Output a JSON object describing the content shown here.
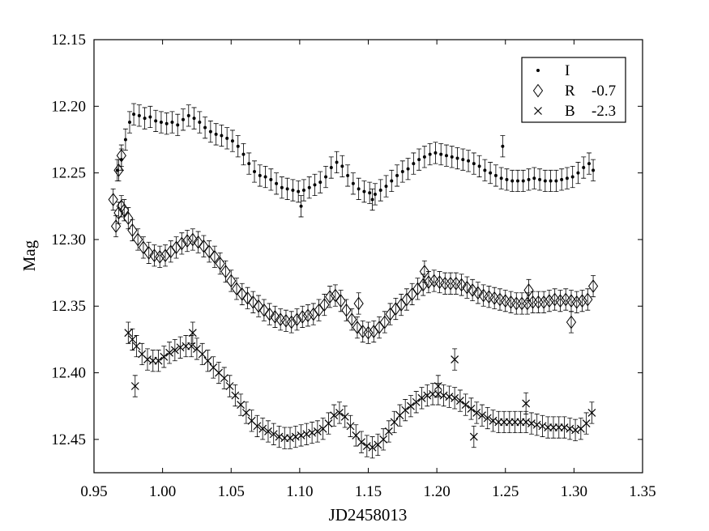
{
  "chart_data": {
    "type": "scatter",
    "title": "",
    "xlabel": "JD2458013",
    "ylabel": "Mag",
    "xlim": [
      0.95,
      1.35
    ],
    "ylim": [
      12.15,
      12.475
    ],
    "y_inverted": true,
    "grid": false,
    "legend_position": "top-right",
    "xticks": [
      "0.95",
      "1.00",
      "1.05",
      "1.10",
      "1.15",
      "1.20",
      "1.25",
      "1.30",
      "1.35"
    ],
    "yticks": [
      "12.15",
      "12.20",
      "12.25",
      "12.30",
      "12.35",
      "12.40",
      "12.45"
    ],
    "error_bars": true,
    "typical_error": 0.008,
    "series": [
      {
        "name": "I",
        "offset_label": "",
        "marker": "dot",
        "points": [
          [
            0.967,
            12.248
          ],
          [
            0.97,
            12.24
          ],
          [
            0.973,
            12.225
          ],
          [
            0.976,
            12.212
          ],
          [
            0.979,
            12.206
          ],
          [
            0.983,
            12.207
          ],
          [
            0.987,
            12.209
          ],
          [
            0.991,
            12.208
          ],
          [
            0.995,
            12.211
          ],
          [
            0.999,
            12.212
          ],
          [
            1.003,
            12.213
          ],
          [
            1.007,
            12.212
          ],
          [
            1.011,
            12.214
          ],
          [
            1.015,
            12.21
          ],
          [
            1.019,
            12.207
          ],
          [
            1.023,
            12.209
          ],
          [
            1.027,
            12.212
          ],
          [
            1.031,
            12.216
          ],
          [
            1.035,
            12.219
          ],
          [
            1.039,
            12.221
          ],
          [
            1.043,
            12.222
          ],
          [
            1.047,
            12.224
          ],
          [
            1.051,
            12.226
          ],
          [
            1.055,
            12.23
          ],
          [
            1.059,
            12.236
          ],
          [
            1.063,
            12.243
          ],
          [
            1.067,
            12.249
          ],
          [
            1.071,
            12.252
          ],
          [
            1.075,
            12.253
          ],
          [
            1.079,
            12.255
          ],
          [
            1.083,
            12.258
          ],
          [
            1.087,
            12.261
          ],
          [
            1.091,
            12.262
          ],
          [
            1.095,
            12.263
          ],
          [
            1.099,
            12.264
          ],
          [
            1.103,
            12.263
          ],
          [
            1.107,
            12.261
          ],
          [
            1.111,
            12.259
          ],
          [
            1.115,
            12.257
          ],
          [
            1.119,
            12.253
          ],
          [
            1.123,
            12.246
          ],
          [
            1.127,
            12.242
          ],
          [
            1.131,
            12.245
          ],
          [
            1.135,
            12.252
          ],
          [
            1.139,
            12.258
          ],
          [
            1.143,
            12.262
          ],
          [
            1.147,
            12.264
          ],
          [
            1.151,
            12.265
          ],
          [
            1.155,
            12.266
          ],
          [
            1.159,
            12.263
          ],
          [
            1.163,
            12.26
          ],
          [
            1.167,
            12.256
          ],
          [
            1.171,
            12.252
          ],
          [
            1.175,
            12.249
          ],
          [
            1.179,
            12.247
          ],
          [
            1.183,
            12.243
          ],
          [
            1.187,
            12.24
          ],
          [
            1.191,
            12.238
          ],
          [
            1.195,
            12.236
          ],
          [
            1.199,
            12.235
          ],
          [
            1.203,
            12.236
          ],
          [
            1.207,
            12.237
          ],
          [
            1.211,
            12.238
          ],
          [
            1.215,
            12.239
          ],
          [
            1.219,
            12.24
          ],
          [
            1.223,
            12.241
          ],
          [
            1.227,
            12.243
          ],
          [
            1.231,
            12.245
          ],
          [
            1.235,
            12.248
          ],
          [
            1.239,
            12.25
          ],
          [
            1.243,
            12.252
          ],
          [
            1.247,
            12.254
          ],
          [
            1.251,
            12.255
          ],
          [
            1.255,
            12.256
          ],
          [
            1.259,
            12.256
          ],
          [
            1.263,
            12.256
          ],
          [
            1.267,
            12.255
          ],
          [
            1.271,
            12.254
          ],
          [
            1.275,
            12.255
          ],
          [
            1.279,
            12.256
          ],
          [
            1.283,
            12.256
          ],
          [
            1.287,
            12.256
          ],
          [
            1.291,
            12.255
          ],
          [
            1.295,
            12.254
          ],
          [
            1.299,
            12.253
          ],
          [
            1.303,
            12.25
          ],
          [
            1.307,
            12.246
          ],
          [
            1.311,
            12.243
          ],
          [
            1.314,
            12.248
          ],
          [
            1.101,
            12.275
          ],
          [
            1.153,
            12.27
          ],
          [
            1.248,
            12.23
          ]
        ]
      },
      {
        "name": "R",
        "offset_label": "-0.7",
        "marker": "diamond",
        "points": [
          [
            0.964,
            12.27
          ],
          [
            0.966,
            12.29
          ],
          [
            0.968,
            12.28
          ],
          [
            0.97,
            12.275
          ],
          [
            0.972,
            12.278
          ],
          [
            0.975,
            12.284
          ],
          [
            0.978,
            12.293
          ],
          [
            0.982,
            12.3
          ],
          [
            0.986,
            12.306
          ],
          [
            0.99,
            12.31
          ],
          [
            0.994,
            12.312
          ],
          [
            0.998,
            12.313
          ],
          [
            1.002,
            12.312
          ],
          [
            1.006,
            12.309
          ],
          [
            1.01,
            12.306
          ],
          [
            1.014,
            12.303
          ],
          [
            1.018,
            12.301
          ],
          [
            1.022,
            12.3
          ],
          [
            1.026,
            12.302
          ],
          [
            1.03,
            12.305
          ],
          [
            1.034,
            12.309
          ],
          [
            1.038,
            12.313
          ],
          [
            1.042,
            12.318
          ],
          [
            1.046,
            12.324
          ],
          [
            1.05,
            12.331
          ],
          [
            1.054,
            12.337
          ],
          [
            1.058,
            12.341
          ],
          [
            1.062,
            12.344
          ],
          [
            1.066,
            12.347
          ],
          [
            1.07,
            12.35
          ],
          [
            1.074,
            12.353
          ],
          [
            1.078,
            12.356
          ],
          [
            1.082,
            12.358
          ],
          [
            1.086,
            12.36
          ],
          [
            1.09,
            12.361
          ],
          [
            1.094,
            12.362
          ],
          [
            1.098,
            12.36
          ],
          [
            1.102,
            12.358
          ],
          [
            1.106,
            12.357
          ],
          [
            1.11,
            12.356
          ],
          [
            1.114,
            12.353
          ],
          [
            1.118,
            12.349
          ],
          [
            1.122,
            12.343
          ],
          [
            1.126,
            12.342
          ],
          [
            1.13,
            12.346
          ],
          [
            1.134,
            12.353
          ],
          [
            1.138,
            12.36
          ],
          [
            1.142,
            12.366
          ],
          [
            1.146,
            12.369
          ],
          [
            1.15,
            12.37
          ],
          [
            1.154,
            12.369
          ],
          [
            1.158,
            12.366
          ],
          [
            1.162,
            12.362
          ],
          [
            1.166,
            12.356
          ],
          [
            1.17,
            12.352
          ],
          [
            1.174,
            12.349
          ],
          [
            1.178,
            12.345
          ],
          [
            1.182,
            12.341
          ],
          [
            1.186,
            12.337
          ],
          [
            1.19,
            12.334
          ],
          [
            1.194,
            12.332
          ],
          [
            1.198,
            12.331
          ],
          [
            1.202,
            12.332
          ],
          [
            1.206,
            12.333
          ],
          [
            1.21,
            12.333
          ],
          [
            1.214,
            12.333
          ],
          [
            1.218,
            12.334
          ],
          [
            1.222,
            12.336
          ],
          [
            1.226,
            12.338
          ],
          [
            1.23,
            12.34
          ],
          [
            1.234,
            12.342
          ],
          [
            1.238,
            12.343
          ],
          [
            1.242,
            12.344
          ],
          [
            1.246,
            12.345
          ],
          [
            1.25,
            12.346
          ],
          [
            1.254,
            12.347
          ],
          [
            1.258,
            12.348
          ],
          [
            1.262,
            12.348
          ],
          [
            1.266,
            12.348
          ],
          [
            1.27,
            12.347
          ],
          [
            1.274,
            12.347
          ],
          [
            1.278,
            12.347
          ],
          [
            1.282,
            12.346
          ],
          [
            1.286,
            12.345
          ],
          [
            1.29,
            12.346
          ],
          [
            1.294,
            12.345
          ],
          [
            1.298,
            12.346
          ],
          [
            1.302,
            12.347
          ],
          [
            1.306,
            12.346
          ],
          [
            1.31,
            12.345
          ],
          [
            1.314,
            12.335
          ],
          [
            0.968,
            12.248
          ],
          [
            0.97,
            12.237
          ],
          [
            1.143,
            12.348
          ],
          [
            1.191,
            12.324
          ],
          [
            1.298,
            12.362
          ],
          [
            1.267,
            12.338
          ]
        ]
      },
      {
        "name": "B",
        "offset_label": "-2.3",
        "marker": "cross",
        "points": [
          [
            0.975,
            12.37
          ],
          [
            0.978,
            12.375
          ],
          [
            0.981,
            12.38
          ],
          [
            0.985,
            12.386
          ],
          [
            0.989,
            12.39
          ],
          [
            0.993,
            12.391
          ],
          [
            0.997,
            12.391
          ],
          [
            1.001,
            12.388
          ],
          [
            1.005,
            12.385
          ],
          [
            1.009,
            12.383
          ],
          [
            1.013,
            12.381
          ],
          [
            1.017,
            12.38
          ],
          [
            1.021,
            12.38
          ],
          [
            1.025,
            12.382
          ],
          [
            1.029,
            12.386
          ],
          [
            1.033,
            12.391
          ],
          [
            1.037,
            12.396
          ],
          [
            1.041,
            12.4
          ],
          [
            1.045,
            12.404
          ],
          [
            1.049,
            12.41
          ],
          [
            1.053,
            12.417
          ],
          [
            1.057,
            12.424
          ],
          [
            1.061,
            12.43
          ],
          [
            1.065,
            12.436
          ],
          [
            1.069,
            12.44
          ],
          [
            1.073,
            12.442
          ],
          [
            1.077,
            12.444
          ],
          [
            1.081,
            12.446
          ],
          [
            1.085,
            12.448
          ],
          [
            1.089,
            12.449
          ],
          [
            1.093,
            12.449
          ],
          [
            1.097,
            12.448
          ],
          [
            1.101,
            12.447
          ],
          [
            1.105,
            12.446
          ],
          [
            1.109,
            12.445
          ],
          [
            1.113,
            12.444
          ],
          [
            1.117,
            12.442
          ],
          [
            1.121,
            12.438
          ],
          [
            1.125,
            12.432
          ],
          [
            1.129,
            12.43
          ],
          [
            1.133,
            12.433
          ],
          [
            1.137,
            12.44
          ],
          [
            1.141,
            12.447
          ],
          [
            1.145,
            12.452
          ],
          [
            1.149,
            12.455
          ],
          [
            1.153,
            12.456
          ],
          [
            1.157,
            12.454
          ],
          [
            1.161,
            12.45
          ],
          [
            1.165,
            12.444
          ],
          [
            1.169,
            12.437
          ],
          [
            1.173,
            12.432
          ],
          [
            1.177,
            12.428
          ],
          [
            1.181,
            12.425
          ],
          [
            1.185,
            12.422
          ],
          [
            1.189,
            12.419
          ],
          [
            1.193,
            12.417
          ],
          [
            1.197,
            12.416
          ],
          [
            1.201,
            12.416
          ],
          [
            1.205,
            12.417
          ],
          [
            1.209,
            12.418
          ],
          [
            1.213,
            12.419
          ],
          [
            1.217,
            12.421
          ],
          [
            1.221,
            12.424
          ],
          [
            1.225,
            12.427
          ],
          [
            1.229,
            12.43
          ],
          [
            1.233,
            12.432
          ],
          [
            1.237,
            12.434
          ],
          [
            1.241,
            12.436
          ],
          [
            1.245,
            12.437
          ],
          [
            1.249,
            12.437
          ],
          [
            1.253,
            12.437
          ],
          [
            1.257,
            12.437
          ],
          [
            1.261,
            12.437
          ],
          [
            1.265,
            12.437
          ],
          [
            1.269,
            12.438
          ],
          [
            1.273,
            12.439
          ],
          [
            1.277,
            12.44
          ],
          [
            1.281,
            12.441
          ],
          [
            1.285,
            12.441
          ],
          [
            1.289,
            12.441
          ],
          [
            1.293,
            12.441
          ],
          [
            1.297,
            12.442
          ],
          [
            1.301,
            12.443
          ],
          [
            1.305,
            12.442
          ],
          [
            1.309,
            12.438
          ],
          [
            1.313,
            12.43
          ],
          [
            0.98,
            12.41
          ],
          [
            1.213,
            12.39
          ],
          [
            1.227,
            12.448
          ],
          [
            1.022,
            12.37
          ],
          [
            1.201,
            12.41
          ],
          [
            1.265,
            12.423
          ]
        ]
      }
    ]
  }
}
